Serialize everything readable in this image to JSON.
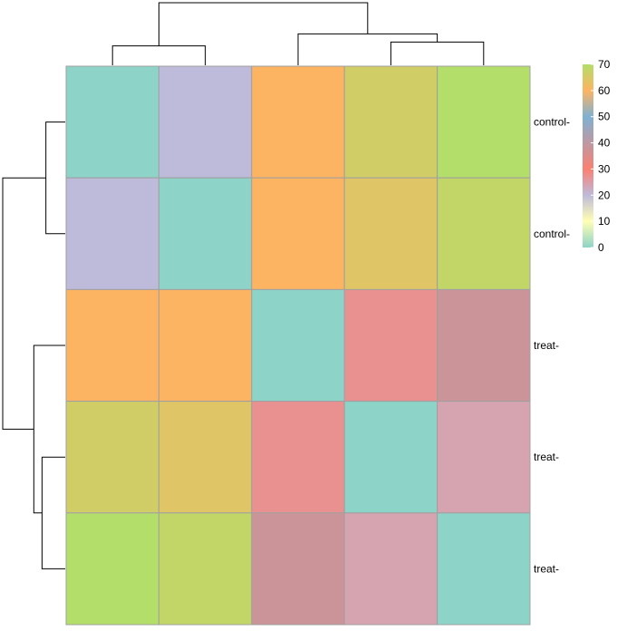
{
  "chart_data": {
    "type": "heatmap",
    "title": "",
    "xlabel": "",
    "ylabel": "",
    "row_labels": [
      "control-",
      "control-",
      "treat-",
      "treat-",
      "treat-"
    ],
    "column_labels": [],
    "values": [
      [
        0,
        20,
        60,
        66,
        70
      ],
      [
        20,
        0,
        60,
        64,
        68
      ],
      [
        60,
        60,
        0,
        27,
        38
      ],
      [
        66,
        64,
        27,
        0,
        24
      ],
      [
        70,
        68,
        38,
        24,
        0
      ]
    ],
    "colorbar": {
      "ticks": [
        "70",
        "60",
        "50",
        "40",
        "30",
        "20",
        "10",
        "0"
      ],
      "tick_values": [
        70,
        60,
        50,
        40,
        30,
        20,
        10,
        0
      ],
      "range": [
        0,
        70
      ],
      "stops": [
        {
          "value": 0,
          "color": "#8dd3c7"
        },
        {
          "value": 10,
          "color": "#ffffb3"
        },
        {
          "value": 20,
          "color": "#bebada"
        },
        {
          "value": 30,
          "color": "#fb8072"
        },
        {
          "value": 50,
          "color": "#80b1d3"
        },
        {
          "value": 60,
          "color": "#fdb462"
        },
        {
          "value": 70,
          "color": "#b3de69"
        }
      ]
    },
    "row_dendrogram": [
      {
        "a": 0,
        "b": 1
      },
      {
        "a": 3,
        "b": 4
      },
      {
        "a": 2,
        "b": "n1"
      },
      {
        "a": "n0",
        "b": "n2"
      }
    ],
    "column_dendrogram": [
      {
        "a": 0,
        "b": 1
      },
      {
        "a": 3,
        "b": 4
      },
      {
        "a": 2,
        "b": "n1"
      },
      {
        "a": "n0",
        "b": "n2"
      }
    ],
    "grid_color": "#a0a0a0"
  }
}
